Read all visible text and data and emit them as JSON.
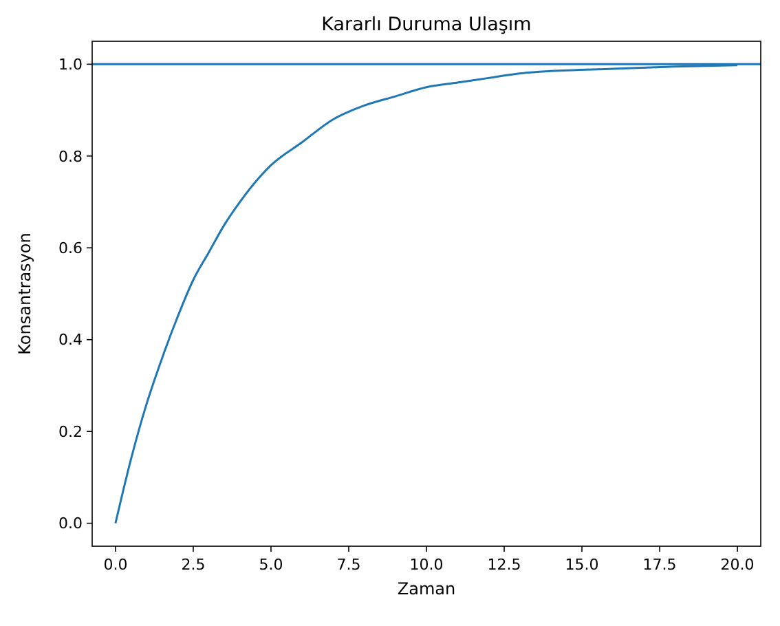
{
  "chart_data": {
    "type": "line",
    "title": "Kararlı Duruma Ulaşım",
    "xlabel": "Zaman",
    "ylabel": "Konsantrasyon",
    "x": [
      0,
      0.5,
      1,
      1.5,
      2,
      2.5,
      3,
      3.5,
      4,
      5,
      6,
      7,
      8,
      9,
      10,
      11,
      12,
      13,
      14,
      16,
      18,
      20
    ],
    "series": [
      {
        "color": "#1f77b4",
        "values": [
          0,
          0.14,
          0.26,
          0.36,
          0.45,
          0.53,
          0.59,
          0.65,
          0.7,
          0.78,
          0.83,
          0.88,
          0.91,
          0.93,
          0.95,
          0.96,
          0.97,
          0.98,
          0.985,
          0.99,
          0.995,
          0.998
        ]
      }
    ],
    "ref_lines": [
      {
        "axis": "y",
        "value": 1.0,
        "color": "#1f77b4"
      }
    ],
    "xlim": [
      -0.75,
      20.75
    ],
    "ylim": [
      -0.05,
      1.05
    ],
    "xticks": [
      {
        "value": 0,
        "label": "0.0"
      },
      {
        "value": 2.5,
        "label": "2.5"
      },
      {
        "value": 5,
        "label": "5.0"
      },
      {
        "value": 7.5,
        "label": "7.5"
      },
      {
        "value": 10,
        "label": "10.0"
      },
      {
        "value": 12.5,
        "label": "12.5"
      },
      {
        "value": 15,
        "label": "15.0"
      },
      {
        "value": 17.5,
        "label": "17.5"
      },
      {
        "value": 20,
        "label": "20.0"
      }
    ],
    "yticks": [
      {
        "value": 0,
        "label": "0.0"
      },
      {
        "value": 0.2,
        "label": "0.2"
      },
      {
        "value": 0.4,
        "label": "0.4"
      },
      {
        "value": 0.6,
        "label": "0.6"
      },
      {
        "value": 0.8,
        "label": "0.8"
      },
      {
        "value": 1,
        "label": "1.0"
      }
    ],
    "grid": false
  }
}
